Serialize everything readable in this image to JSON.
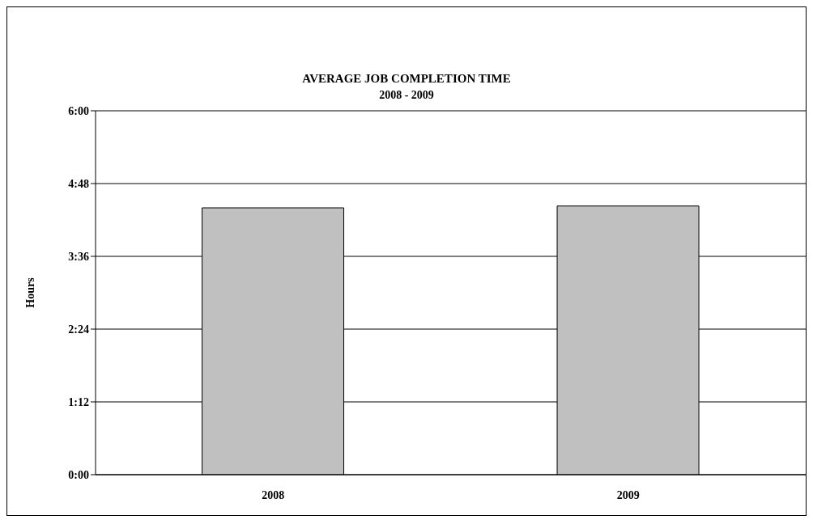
{
  "chart_data": {
    "type": "bar",
    "title": "AVERAGE JOB COMPLETION TIME",
    "subtitle": "2008 - 2009",
    "ylabel": "Hours",
    "categories": [
      "2008",
      "2009"
    ],
    "values": [
      4.4,
      4.43
    ],
    "color": "#c0c0c0",
    "ylim": [
      0,
      6
    ],
    "yticks": [
      {
        "value": 0,
        "label": "0:00"
      },
      {
        "value": 1.2,
        "label": "1:12"
      },
      {
        "value": 2.4,
        "label": "2:24"
      },
      {
        "value": 3.6,
        "label": "3:36"
      },
      {
        "value": 4.8,
        "label": "4:48"
      },
      {
        "value": 6,
        "label": "6:00"
      }
    ],
    "grid": "y"
  }
}
